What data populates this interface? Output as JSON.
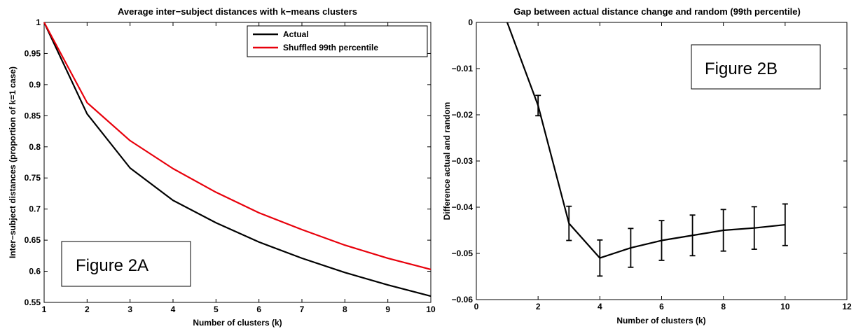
{
  "chart_data": [
    {
      "type": "line",
      "title": "Average inter−subject distances with k−means clusters",
      "xlabel": "Number of clusters (k)",
      "ylabel": "Inter−subject distances (proportion of k=1 case)",
      "xlim": [
        1,
        10
      ],
      "ylim": [
        0.55,
        1
      ],
      "xticks": [
        1,
        2,
        3,
        4,
        5,
        6,
        7,
        8,
        9,
        10
      ],
      "yticks": [
        0.55,
        0.6,
        0.65,
        0.7,
        0.75,
        0.8,
        0.85,
        0.9,
        0.95,
        1
      ],
      "ytick_labels": [
        "0.55",
        "0.6",
        "0.65",
        "0.7",
        "0.75",
        "0.8",
        "0.85",
        "0.9",
        "0.95",
        "1"
      ],
      "x": [
        1,
        2,
        3,
        4,
        5,
        6,
        7,
        8,
        9,
        10
      ],
      "series": [
        {
          "name": "Actual",
          "color": "#000000",
          "values": [
            1.0,
            0.853,
            0.766,
            0.714,
            0.678,
            0.647,
            0.621,
            0.598,
            0.578,
            0.56
          ]
        },
        {
          "name": "Shuffled 99th percentile",
          "color": "#e8000b",
          "values": [
            1.0,
            0.871,
            0.81,
            0.765,
            0.727,
            0.694,
            0.667,
            0.642,
            0.621,
            0.603
          ]
        }
      ],
      "legend_position": "top-right",
      "annotation": "Figure 2A"
    },
    {
      "type": "line",
      "title": "Gap between actual distance change and random (99th percentile)",
      "xlabel": "Number of clusters (k)",
      "ylabel": "Difference actual and random",
      "xlim": [
        0,
        12
      ],
      "ylim": [
        -0.06,
        0
      ],
      "xticks": [
        0,
        2,
        4,
        6,
        8,
        10,
        12
      ],
      "yticks": [
        -0.06,
        -0.05,
        -0.04,
        -0.03,
        -0.02,
        -0.01,
        0
      ],
      "ytick_labels": [
        "−0.06",
        "−0.05",
        "−0.04",
        "−0.03",
        "−0.02",
        "−0.01",
        "0"
      ],
      "x": [
        1,
        2,
        3,
        4,
        5,
        6,
        7,
        8,
        9,
        10
      ],
      "series": [
        {
          "color": "#000000",
          "values": [
            0,
            -0.018,
            -0.0435,
            -0.051,
            -0.0488,
            -0.0472,
            -0.0461,
            -0.045,
            -0.0445,
            -0.0438
          ],
          "error": [
            null,
            0.0022,
            0.0037,
            0.0039,
            0.0042,
            0.0043,
            0.0044,
            0.0045,
            0.0046,
            0.0045
          ]
        }
      ],
      "annotation": "Figure 2B"
    }
  ]
}
